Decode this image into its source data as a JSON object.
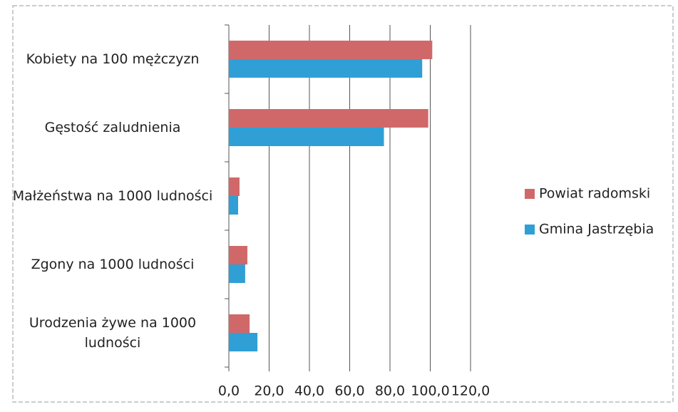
{
  "chart_data": {
    "type": "hbar",
    "categories": [
      "Kobiety na 100 mężczyzn",
      "Gęstość zaludnienia",
      "Małżeństwa na 1000 ludności",
      "Zgony na 1000 ludności",
      "Urodzenia żywe na 1000 ludności"
    ],
    "series": [
      {
        "name": "Powiat radomski",
        "color": "#d0686a",
        "values": [
          101,
          99,
          5.3,
          9.2,
          10.3
        ]
      },
      {
        "name": "Gmina Jastrzębia",
        "color": "#2f9fd6",
        "values": [
          96,
          77,
          4.6,
          8.1,
          14.2
        ]
      }
    ],
    "xlim": [
      0,
      120
    ],
    "xticks": [
      {
        "value": 0,
        "label": "0,0"
      },
      {
        "value": 20,
        "label": "20,0"
      },
      {
        "value": 40,
        "label": "40,0"
      },
      {
        "value": 60,
        "label": "60,0"
      },
      {
        "value": 80,
        "label": "80,0"
      },
      {
        "value": 100,
        "label": "100,0"
      },
      {
        "value": 120,
        "label": "120,0"
      }
    ],
    "grid": true,
    "legend": "right"
  }
}
